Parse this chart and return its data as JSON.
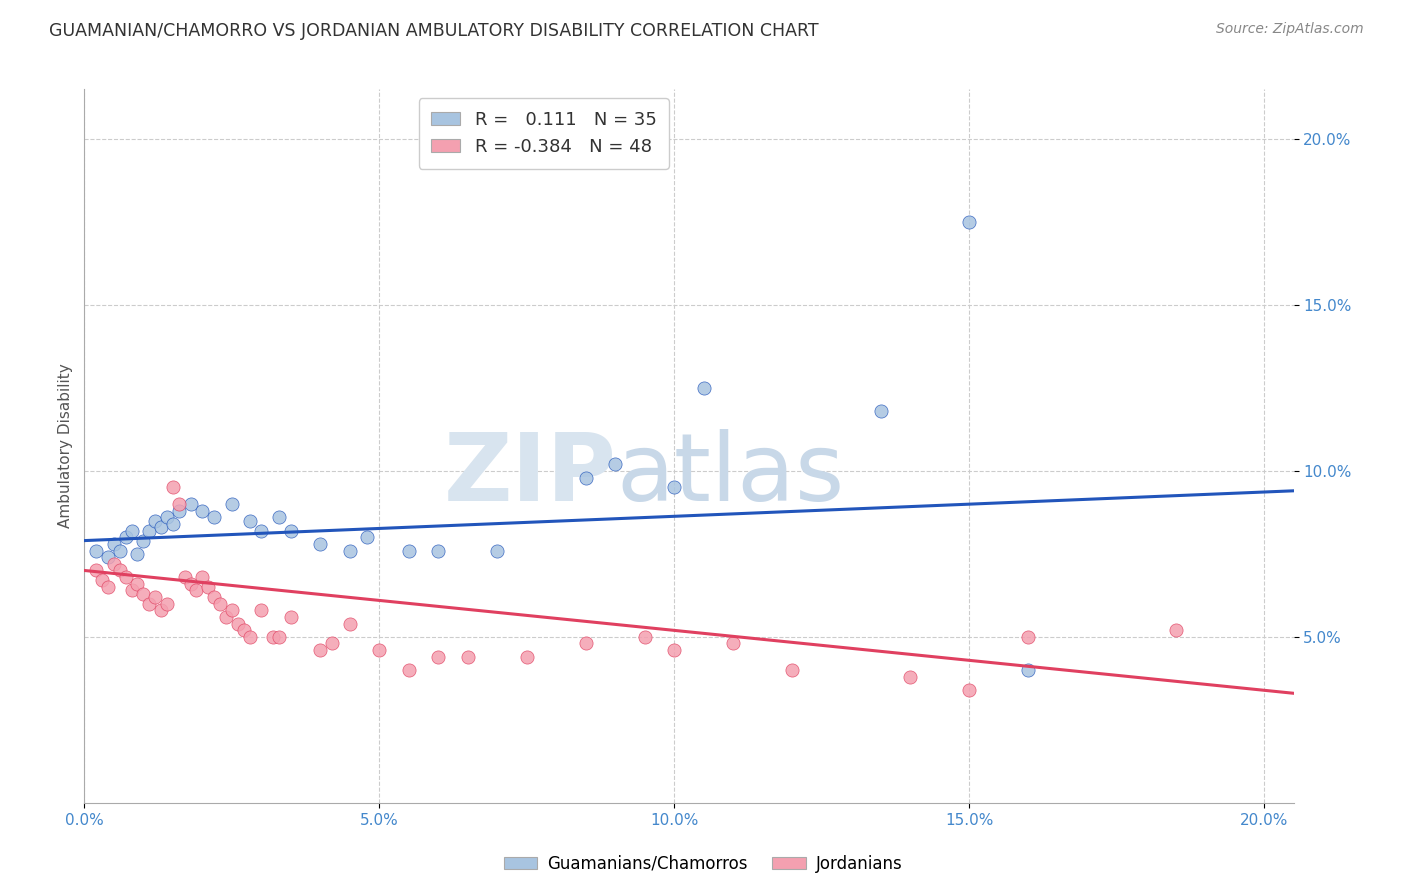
{
  "title": "GUAMANIAN/CHAMORRO VS JORDANIAN AMBULATORY DISABILITY CORRELATION CHART",
  "source": "Source: ZipAtlas.com",
  "ylabel": "Ambulatory Disability",
  "xlim": [
    0.0,
    0.205
  ],
  "ylim": [
    0.0,
    0.215
  ],
  "xtick_vals": [
    0.0,
    0.05,
    0.1,
    0.15,
    0.2
  ],
  "xtick_labels": [
    "0.0%",
    "5.0%",
    "10.0%",
    "15.0%",
    "20.0%"
  ],
  "ytick_vals": [
    0.05,
    0.1,
    0.15,
    0.2
  ],
  "ytick_labels": [
    "5.0%",
    "10.0%",
    "15.0%",
    "20.0%"
  ],
  "legend_labels": [
    "Guamanians/Chamorros",
    "Jordanians"
  ],
  "blue_R": "0.111",
  "blue_N": "35",
  "pink_R": "-0.384",
  "pink_N": "48",
  "blue_color": "#a8c4e0",
  "pink_color": "#f4a0b0",
  "blue_line_color": "#2255bb",
  "pink_line_color": "#e04060",
  "blue_scatter": [
    [
      0.002,
      0.076
    ],
    [
      0.004,
      0.074
    ],
    [
      0.005,
      0.078
    ],
    [
      0.006,
      0.076
    ],
    [
      0.007,
      0.08
    ],
    [
      0.008,
      0.082
    ],
    [
      0.009,
      0.075
    ],
    [
      0.01,
      0.079
    ],
    [
      0.011,
      0.082
    ],
    [
      0.012,
      0.085
    ],
    [
      0.013,
      0.083
    ],
    [
      0.014,
      0.086
    ],
    [
      0.015,
      0.084
    ],
    [
      0.016,
      0.088
    ],
    [
      0.018,
      0.09
    ],
    [
      0.02,
      0.088
    ],
    [
      0.022,
      0.086
    ],
    [
      0.025,
      0.09
    ],
    [
      0.028,
      0.085
    ],
    [
      0.03,
      0.082
    ],
    [
      0.033,
      0.086
    ],
    [
      0.035,
      0.082
    ],
    [
      0.04,
      0.078
    ],
    [
      0.045,
      0.076
    ],
    [
      0.048,
      0.08
    ],
    [
      0.055,
      0.076
    ],
    [
      0.06,
      0.076
    ],
    [
      0.07,
      0.076
    ],
    [
      0.085,
      0.098
    ],
    [
      0.09,
      0.102
    ],
    [
      0.1,
      0.095
    ],
    [
      0.105,
      0.125
    ],
    [
      0.135,
      0.118
    ],
    [
      0.15,
      0.175
    ],
    [
      0.16,
      0.04
    ]
  ],
  "pink_scatter": [
    [
      0.002,
      0.07
    ],
    [
      0.003,
      0.067
    ],
    [
      0.004,
      0.065
    ],
    [
      0.005,
      0.072
    ],
    [
      0.006,
      0.07
    ],
    [
      0.007,
      0.068
    ],
    [
      0.008,
      0.064
    ],
    [
      0.009,
      0.066
    ],
    [
      0.01,
      0.063
    ],
    [
      0.011,
      0.06
    ],
    [
      0.012,
      0.062
    ],
    [
      0.013,
      0.058
    ],
    [
      0.014,
      0.06
    ],
    [
      0.015,
      0.095
    ],
    [
      0.016,
      0.09
    ],
    [
      0.017,
      0.068
    ],
    [
      0.018,
      0.066
    ],
    [
      0.019,
      0.064
    ],
    [
      0.02,
      0.068
    ],
    [
      0.021,
      0.065
    ],
    [
      0.022,
      0.062
    ],
    [
      0.023,
      0.06
    ],
    [
      0.024,
      0.056
    ],
    [
      0.025,
      0.058
    ],
    [
      0.026,
      0.054
    ],
    [
      0.027,
      0.052
    ],
    [
      0.028,
      0.05
    ],
    [
      0.03,
      0.058
    ],
    [
      0.032,
      0.05
    ],
    [
      0.033,
      0.05
    ],
    [
      0.035,
      0.056
    ],
    [
      0.04,
      0.046
    ],
    [
      0.042,
      0.048
    ],
    [
      0.045,
      0.054
    ],
    [
      0.05,
      0.046
    ],
    [
      0.055,
      0.04
    ],
    [
      0.06,
      0.044
    ],
    [
      0.065,
      0.044
    ],
    [
      0.075,
      0.044
    ],
    [
      0.085,
      0.048
    ],
    [
      0.095,
      0.05
    ],
    [
      0.1,
      0.046
    ],
    [
      0.11,
      0.048
    ],
    [
      0.12,
      0.04
    ],
    [
      0.14,
      0.038
    ],
    [
      0.15,
      0.034
    ],
    [
      0.16,
      0.05
    ],
    [
      0.185,
      0.052
    ]
  ],
  "blue_trendline": [
    [
      0.0,
      0.079
    ],
    [
      0.205,
      0.094
    ]
  ],
  "pink_trendline": [
    [
      0.0,
      0.07
    ],
    [
      0.205,
      0.033
    ]
  ],
  "watermark_zip": "ZIP",
  "watermark_atlas": "atlas",
  "grid_color": "#cccccc",
  "grid_style": "--",
  "bg_color": "#ffffff",
  "tick_color": "#4488cc",
  "spine_color": "#aaaaaa"
}
